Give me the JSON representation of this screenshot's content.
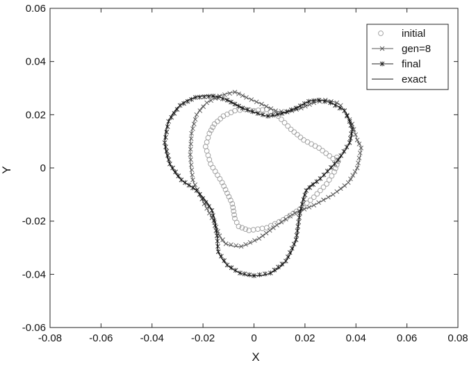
{
  "chart_data": {
    "type": "line",
    "title": "",
    "xlabel": "X",
    "ylabel": "Y",
    "xlim": [
      -0.08,
      0.08
    ],
    "ylim": [
      -0.06,
      0.06
    ],
    "xticks": [
      -0.08,
      -0.06,
      -0.04,
      -0.02,
      0,
      0.02,
      0.04,
      0.06,
      0.08
    ],
    "xtick_labels": [
      "-0.08",
      "-0.06",
      "-0.04",
      "-0.02",
      "0",
      "0.02",
      "0.04",
      "0.06",
      "0.08"
    ],
    "yticks": [
      -0.06,
      -0.04,
      -0.02,
      0,
      0.02,
      0.04,
      0.06
    ],
    "ytick_labels": [
      "-0.06",
      "-0.04",
      "-0.02",
      "0",
      "0.02",
      "0.04",
      "0.06"
    ],
    "grid": false,
    "legend_position": "top-right",
    "series": [
      {
        "name": "initial",
        "marker": "circle",
        "color": "#9a9a9a",
        "x": [
          0.031,
          0.0255,
          0.0195,
          0.0145,
          0.0095,
          0.005,
          0.0,
          -0.0035,
          -0.0075,
          -0.012,
          -0.0155,
          -0.0175,
          -0.019,
          -0.017,
          -0.0125,
          -0.0085,
          -0.0075,
          -0.006,
          -0.002,
          0.005,
          0.0115,
          0.018,
          0.0235,
          0.0285,
          0.0315,
          0.033,
          0.0325,
          0.031
        ],
        "y": [
          0.0035,
          0.0075,
          0.0105,
          0.0145,
          0.0195,
          0.022,
          0.0215,
          0.022,
          0.0215,
          0.0195,
          0.0165,
          0.013,
          0.008,
          0.0015,
          -0.0055,
          -0.0135,
          -0.019,
          -0.022,
          -0.0235,
          -0.0225,
          -0.0195,
          -0.0155,
          -0.011,
          -0.006,
          -0.0015,
          0.0025,
          0.004,
          0.0035
        ]
      },
      {
        "name": "gen=8",
        "marker": "x",
        "color": "#555555",
        "x": [
          0.042,
          0.0405,
          0.0385,
          0.0355,
          0.034,
          0.0325,
          0.028,
          0.0235,
          0.0185,
          0.013,
          0.0085,
          0.003,
          -0.003,
          -0.0075,
          -0.0135,
          -0.0185,
          -0.0225,
          -0.0245,
          -0.025,
          -0.024,
          -0.0195,
          -0.0155,
          -0.0135,
          -0.011,
          -0.005,
          0.002,
          0.009,
          0.016,
          0.0235,
          0.031,
          0.037,
          0.0405,
          0.042
        ],
        "y": [
          0.0075,
          0.0105,
          0.0165,
          0.0215,
          0.0235,
          0.0245,
          0.0255,
          0.0245,
          0.0225,
          0.021,
          0.0215,
          0.024,
          0.0265,
          0.0285,
          0.027,
          0.0245,
          0.02,
          0.013,
          0.005,
          -0.0045,
          -0.0135,
          -0.0205,
          -0.0255,
          -0.0285,
          -0.0295,
          -0.0265,
          -0.0215,
          -0.017,
          -0.014,
          -0.01,
          -0.0055,
          0.0,
          0.0075
        ]
      },
      {
        "name": "final",
        "marker": "star",
        "color": "#222222",
        "x": [
          0.0385,
          0.0375,
          0.0355,
          0.03,
          0.0255,
          0.0215,
          0.0165,
          0.011,
          0.0055,
          0.0015,
          -0.0045,
          -0.0105,
          -0.016,
          -0.023,
          -0.029,
          -0.0335,
          -0.035,
          -0.033,
          -0.0285,
          -0.0225,
          -0.0165,
          -0.0145,
          -0.014,
          -0.0105,
          -0.0055,
          0.0,
          0.0065,
          0.0125,
          0.0165,
          0.018,
          0.0205,
          0.026,
          0.033,
          0.0375,
          0.0385
        ],
        "y": [
          0.0145,
          0.0175,
          0.0215,
          0.0245,
          0.0255,
          0.025,
          0.0225,
          0.0205,
          0.0195,
          0.0205,
          0.0225,
          0.0255,
          0.027,
          0.0265,
          0.0235,
          0.0175,
          0.0095,
          0.0015,
          -0.0045,
          -0.0085,
          -0.016,
          -0.0255,
          -0.0315,
          -0.0365,
          -0.0395,
          -0.0405,
          -0.0395,
          -0.035,
          -0.027,
          -0.017,
          -0.0085,
          -0.004,
          0.003,
          0.0095,
          0.0145
        ]
      },
      {
        "name": "exact",
        "marker": "none",
        "color": "#111111",
        "x": [
          0.0385,
          0.0375,
          0.0355,
          0.03,
          0.0255,
          0.0215,
          0.0165,
          0.011,
          0.0055,
          0.0015,
          -0.0045,
          -0.0105,
          -0.016,
          -0.023,
          -0.029,
          -0.0335,
          -0.035,
          -0.033,
          -0.0285,
          -0.0225,
          -0.0165,
          -0.0145,
          -0.014,
          -0.0105,
          -0.0055,
          0.0,
          0.0065,
          0.0125,
          0.0165,
          0.018,
          0.0205,
          0.026,
          0.033,
          0.0375,
          0.0385
        ],
        "y": [
          0.0145,
          0.0175,
          0.0215,
          0.0245,
          0.0255,
          0.025,
          0.0225,
          0.0205,
          0.0195,
          0.0205,
          0.0225,
          0.0255,
          0.027,
          0.0265,
          0.0235,
          0.0175,
          0.0095,
          0.0015,
          -0.0045,
          -0.0085,
          -0.016,
          -0.0255,
          -0.0315,
          -0.0365,
          -0.0395,
          -0.0405,
          -0.0395,
          -0.035,
          -0.027,
          -0.017,
          -0.0085,
          -0.004,
          0.003,
          0.0095,
          0.0145
        ]
      }
    ]
  }
}
